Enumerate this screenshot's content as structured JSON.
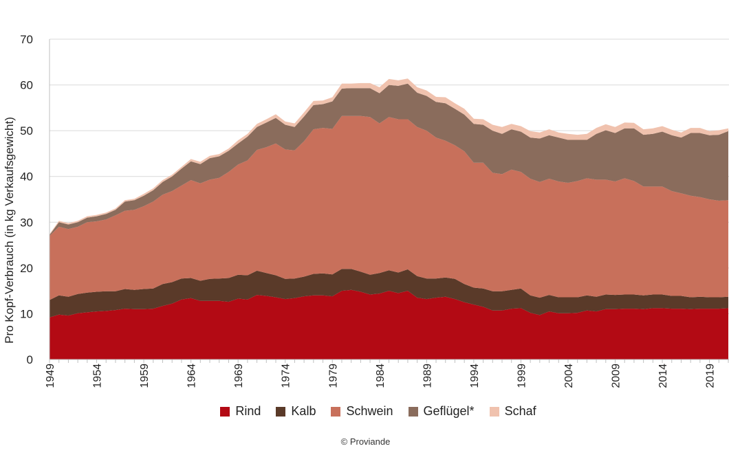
{
  "chart_data": {
    "type": "area",
    "stacked": true,
    "title": "",
    "xlabel": "",
    "ylabel": "Pro Kopf-Verbrauch (in kg Verkaufsgewicht)",
    "ylim": [
      0,
      70
    ],
    "yticks": [
      "0",
      "10",
      "20",
      "30",
      "40",
      "50",
      "60",
      "70"
    ],
    "xlim": [
      1949,
      2021
    ],
    "xticks": [
      "1949",
      "1954",
      "1959",
      "1964",
      "1969",
      "1974",
      "1979",
      "1984",
      "1989",
      "1994",
      "1999",
      "2004",
      "2009",
      "2014",
      "2019"
    ],
    "grid": true,
    "legend_position": "bottom",
    "x": [
      1949,
      1950,
      1951,
      1952,
      1953,
      1954,
      1955,
      1956,
      1957,
      1958,
      1959,
      1960,
      1961,
      1962,
      1963,
      1964,
      1965,
      1966,
      1967,
      1968,
      1969,
      1970,
      1971,
      1972,
      1973,
      1974,
      1975,
      1976,
      1977,
      1978,
      1979,
      1980,
      1981,
      1982,
      1983,
      1984,
      1985,
      1986,
      1987,
      1988,
      1989,
      1990,
      1991,
      1992,
      1993,
      1994,
      1995,
      1996,
      1997,
      1998,
      1999,
      2000,
      2001,
      2002,
      2003,
      2004,
      2005,
      2006,
      2007,
      2008,
      2009,
      2010,
      2011,
      2012,
      2013,
      2014,
      2015,
      2016,
      2017,
      2018,
      2019,
      2020,
      2021
    ],
    "series": [
      {
        "name": "Rind",
        "color": "#b30a14",
        "values": [
          9.2,
          9.8,
          9.6,
          10.1,
          10.3,
          10.5,
          10.6,
          10.8,
          11.1,
          11.0,
          11.0,
          11.1,
          11.7,
          12.2,
          13.1,
          13.4,
          12.8,
          12.8,
          12.8,
          12.6,
          13.3,
          13.1,
          14.1,
          13.9,
          13.6,
          13.2,
          13.4,
          13.8,
          14.0,
          14.0,
          13.8,
          15.0,
          15.2,
          14.8,
          14.2,
          14.4,
          15.0,
          14.5,
          15.0,
          13.5,
          13.2,
          13.5,
          13.7,
          13.2,
          12.5,
          12.0,
          11.5,
          10.7,
          10.7,
          11.1,
          11.2,
          10.2,
          9.7,
          10.5,
          10.1,
          10.1,
          10.2,
          10.7,
          10.5,
          11.0,
          11.0,
          11.1,
          11.1,
          11.0,
          11.2,
          11.2,
          11.1,
          11.1,
          11.0,
          11.1,
          11.1,
          11.1,
          11.2
        ]
      },
      {
        "name": "Kalb",
        "color": "#5a3a29",
        "values": [
          3.8,
          4.2,
          4.1,
          4.2,
          4.3,
          4.3,
          4.3,
          4.1,
          4.3,
          4.2,
          4.4,
          4.4,
          4.8,
          4.7,
          4.6,
          4.4,
          4.4,
          4.8,
          4.9,
          5.2,
          5.2,
          5.3,
          5.3,
          5.0,
          4.8,
          4.4,
          4.3,
          4.3,
          4.7,
          4.8,
          4.8,
          4.8,
          4.6,
          4.4,
          4.3,
          4.5,
          4.5,
          4.5,
          4.7,
          4.7,
          4.5,
          4.2,
          4.2,
          4.4,
          4.0,
          3.7,
          4.0,
          4.2,
          4.2,
          4.1,
          4.3,
          3.8,
          3.8,
          3.6,
          3.5,
          3.5,
          3.4,
          3.3,
          3.2,
          3.2,
          3.1,
          3.1,
          3.1,
          3.0,
          3.0,
          3.0,
          2.8,
          2.8,
          2.6,
          2.6,
          2.5,
          2.5,
          2.5
        ]
      },
      {
        "name": "Schwein",
        "color": "#c8705b",
        "values": [
          14.0,
          15.0,
          14.8,
          14.7,
          15.4,
          15.4,
          15.7,
          16.6,
          17.1,
          17.5,
          18.1,
          19.0,
          19.5,
          19.9,
          20.3,
          21.4,
          21.3,
          21.7,
          22.0,
          23.2,
          24.1,
          25.1,
          26.4,
          27.5,
          28.8,
          28.3,
          28.0,
          29.6,
          31.6,
          31.8,
          31.8,
          33.4,
          33.4,
          34.0,
          34.5,
          32.7,
          33.5,
          33.5,
          32.8,
          32.6,
          32.3,
          30.8,
          29.9,
          29.2,
          29.0,
          27.3,
          27.5,
          25.9,
          25.6,
          26.3,
          25.5,
          25.5,
          25.3,
          25.4,
          25.3,
          25.0,
          25.4,
          25.6,
          25.6,
          25.1,
          24.8,
          25.4,
          24.8,
          23.8,
          23.6,
          23.6,
          22.9,
          22.4,
          22.2,
          21.8,
          21.4,
          21.1,
          21.1
        ]
      },
      {
        "name": "Geflügel*",
        "color": "#8a6c5c",
        "values": [
          0.2,
          1.0,
          1.0,
          1.0,
          1.0,
          1.1,
          1.2,
          1.2,
          2.0,
          2.1,
          2.3,
          2.5,
          2.8,
          3.2,
          3.7,
          4.1,
          4.2,
          4.7,
          4.7,
          4.6,
          4.6,
          5.2,
          5.0,
          5.4,
          5.6,
          5.4,
          5.1,
          5.4,
          5.3,
          5.2,
          6.0,
          6.0,
          6.1,
          6.1,
          6.3,
          6.6,
          7.0,
          7.3,
          7.8,
          7.5,
          7.6,
          7.8,
          8.2,
          8.0,
          8.0,
          8.5,
          8.3,
          9.2,
          8.8,
          8.8,
          8.8,
          9.0,
          9.5,
          9.5,
          9.6,
          9.4,
          9.0,
          8.4,
          10.0,
          10.8,
          10.6,
          10.9,
          11.5,
          11.3,
          11.5,
          12.0,
          12.2,
          12.2,
          13.7,
          14.0,
          14.0,
          14.4,
          15.1
        ]
      },
      {
        "name": "Schaf",
        "color": "#f0c2ae",
        "values": [
          0.2,
          0.3,
          0.3,
          0.3,
          0.3,
          0.3,
          0.3,
          0.3,
          0.3,
          0.3,
          0.4,
          0.4,
          0.4,
          0.4,
          0.4,
          0.5,
          0.5,
          0.5,
          0.5,
          0.5,
          0.7,
          0.6,
          0.7,
          0.7,
          0.8,
          0.7,
          0.8,
          0.9,
          0.9,
          0.8,
          0.9,
          1.1,
          1.0,
          1.1,
          1.1,
          1.3,
          1.3,
          1.2,
          1.1,
          1.2,
          1.2,
          1.1,
          1.3,
          1.2,
          1.3,
          1.1,
          1.2,
          1.3,
          1.5,
          1.2,
          1.2,
          1.4,
          1.3,
          1.3,
          1.1,
          1.3,
          1.1,
          1.3,
          1.3,
          1.3,
          1.3,
          1.3,
          1.2,
          1.2,
          1.2,
          1.2,
          1.2,
          1.1,
          1.1,
          1.1,
          0.9,
          1.0,
          0.6
        ]
      }
    ]
  },
  "footer": "© Proviande"
}
